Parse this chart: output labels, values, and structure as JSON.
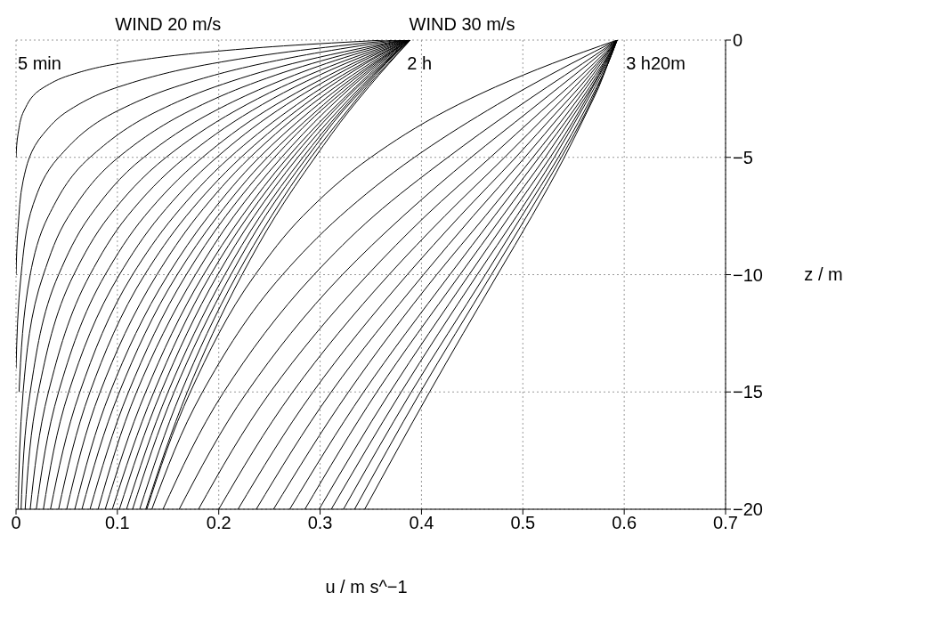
{
  "chart_data": {
    "type": "line",
    "xlabel": "u / m s^−1",
    "ylabel": "z / m",
    "xlim": [
      0,
      0.7
    ],
    "xticks": [
      0,
      0.1,
      0.2,
      0.3,
      0.4,
      0.5,
      0.6,
      0.7
    ],
    "ylim": [
      -20,
      0
    ],
    "yticks": [
      -20,
      -15,
      -10,
      -5,
      0
    ],
    "grid": true,
    "annotations": [
      "WIND 20 m/s",
      "WIND 30 m/s",
      "5 min",
      "2 h",
      "3 h20m"
    ],
    "series": [
      {
        "color": "#000000",
        "x": [
          0.364,
          0.264,
          0.192,
          0.101,
          0.053,
          0.028,
          0.008,
          0.002,
          0
        ],
        "values": [
          0,
          -0.25,
          -0.5,
          -1,
          -1.5,
          -2,
          -3,
          -4,
          -5
        ]
      },
      {
        "color": "#000000",
        "x": [
          0.373,
          0.269,
          0.194,
          0.101,
          0.052,
          0.027,
          0.007,
          0.002,
          0
        ],
        "values": [
          0,
          -0.5,
          -1,
          -2,
          -3,
          -4,
          -6,
          -8,
          -10
        ]
      },
      {
        "color": "#000000",
        "x": [
          0.377,
          0.303,
          0.243,
          0.157,
          0.101,
          0.042,
          0.017,
          0.005,
          0
        ],
        "values": [
          0,
          -0.5,
          -1,
          -2,
          -3,
          -5,
          -7,
          -10,
          -14
        ]
      },
      {
        "color": "#000000",
        "x": [
          0.38,
          0.273,
          0.196,
          0.141,
          0.073,
          0.032,
          0.014,
          0.003
        ],
        "values": [
          0,
          -1,
          -2,
          -3,
          -5,
          -7.5,
          -10,
          -15
        ]
      },
      {
        "color": "#000000",
        "x": [
          0.381,
          0.292,
          0.224,
          0.172,
          0.101,
          0.052,
          0.027,
          0.007,
          0.002
        ],
        "values": [
          0,
          -1,
          -2,
          -3,
          -5,
          -7.5,
          -10,
          -15,
          -20
        ]
      },
      {
        "color": "#000000",
        "x": [
          0.382,
          0.306,
          0.246,
          0.197,
          0.126,
          0.073,
          0.042,
          0.014,
          0.005
        ],
        "values": [
          0,
          -1,
          -2,
          -3,
          -5,
          -7.5,
          -10,
          -15,
          -20
        ]
      },
      {
        "color": "#000000",
        "x": [
          0.383,
          0.317,
          0.262,
          0.217,
          0.148,
          0.092,
          0.057,
          0.022,
          0.009
        ],
        "values": [
          0,
          -1,
          -2,
          -3,
          -5,
          -7.5,
          -10,
          -15,
          -20
        ]
      },
      {
        "color": "#000000",
        "x": [
          0.384,
          0.325,
          0.275,
          0.233,
          0.167,
          0.11,
          0.073,
          0.032,
          0.014
        ],
        "values": [
          0,
          -1,
          -2,
          -3,
          -5,
          -7.5,
          -10,
          -15,
          -20
        ]
      },
      {
        "color": "#000000",
        "x": [
          0.385,
          0.332,
          0.287,
          0.247,
          0.184,
          0.127,
          0.088,
          0.042,
          0.02
        ],
        "values": [
          0,
          -1,
          -2,
          -3,
          -5,
          -7.5,
          -10,
          -15,
          -20
        ]
      },
      {
        "color": "#000000",
        "x": [
          0.385,
          0.337,
          0.295,
          0.258,
          0.198,
          0.142,
          0.102,
          0.052,
          0.027
        ],
        "values": [
          0,
          -1,
          -2,
          -3,
          -5,
          -7.5,
          -10,
          -15,
          -20
        ]
      },
      {
        "color": "#000000",
        "x": [
          0.386,
          0.342,
          0.303,
          0.269,
          0.211,
          0.156,
          0.115,
          0.063,
          0.034
        ],
        "values": [
          0,
          -1,
          -2,
          -3,
          -5,
          -7.5,
          -10,
          -15,
          -20
        ]
      },
      {
        "color": "#000000",
        "x": [
          0.386,
          0.345,
          0.309,
          0.277,
          0.222,
          0.168,
          0.127,
          0.073,
          0.042
        ],
        "values": [
          0,
          -1,
          -2,
          -3,
          -5,
          -7.5,
          -10,
          -15,
          -20
        ]
      },
      {
        "color": "#000000",
        "x": [
          0.386,
          0.349,
          0.315,
          0.284,
          0.231,
          0.179,
          0.139,
          0.083,
          0.05
        ],
        "values": [
          0,
          -1,
          -2,
          -3,
          -5,
          -7.5,
          -10,
          -15,
          -20
        ]
      },
      {
        "color": "#000000",
        "x": [
          0.387,
          0.352,
          0.32,
          0.291,
          0.24,
          0.19,
          0.15,
          0.093,
          0.058
        ],
        "values": [
          0,
          -1,
          -2,
          -3,
          -5,
          -7.5,
          -10,
          -15,
          -20
        ]
      },
      {
        "color": "#000000",
        "x": [
          0.387,
          0.354,
          0.324,
          0.297,
          0.248,
          0.199,
          0.159,
          0.102,
          0.065
        ],
        "values": [
          0,
          -1,
          -2,
          -3,
          -5,
          -7.5,
          -10,
          -15,
          -20
        ]
      },
      {
        "color": "#000000",
        "x": [
          0.387,
          0.356,
          0.328,
          0.301,
          0.255,
          0.207,
          0.168,
          0.111,
          0.073
        ],
        "values": [
          0,
          -1,
          -2,
          -3,
          -5,
          -7.5,
          -10,
          -15,
          -20
        ]
      },
      {
        "color": "#000000",
        "x": [
          0.387,
          0.358,
          0.331,
          0.306,
          0.262,
          0.215,
          0.177,
          0.119,
          0.081
        ],
        "values": [
          0,
          -1,
          -2,
          -3,
          -5,
          -7.5,
          -10,
          -15,
          -20
        ]
      },
      {
        "color": "#000000",
        "x": [
          0.388,
          0.36,
          0.335,
          0.311,
          0.268,
          0.223,
          0.185,
          0.128,
          0.088
        ],
        "values": [
          0,
          -1,
          -2,
          -3,
          -5,
          -7.5,
          -10,
          -15,
          -20
        ]
      },
      {
        "color": "#000000",
        "x": [
          0.388,
          0.362,
          0.337,
          0.314,
          0.273,
          0.229,
          0.192,
          0.136,
          0.095
        ],
        "values": [
          0,
          -1,
          -2,
          -3,
          -5,
          -7.5,
          -10,
          -15,
          -20
        ]
      },
      {
        "color": "#000000",
        "x": [
          0.388,
          0.363,
          0.34,
          0.318,
          0.278,
          0.235,
          0.199,
          0.143,
          0.102
        ],
        "values": [
          0,
          -1,
          -2,
          -3,
          -5,
          -7.5,
          -10,
          -15,
          -20
        ]
      },
      {
        "color": "#000000",
        "x": [
          0.388,
          0.364,
          0.342,
          0.321,
          0.283,
          0.241,
          0.206,
          0.15,
          0.109
        ],
        "values": [
          0,
          -1,
          -2,
          -3,
          -5,
          -7.5,
          -10,
          -15,
          -20
        ]
      },
      {
        "color": "#000000",
        "x": [
          0.388,
          0.365,
          0.344,
          0.323,
          0.287,
          0.246,
          0.212,
          0.156,
          0.115
        ],
        "values": [
          0,
          -1,
          -2,
          -3,
          -5,
          -7.5,
          -10,
          -15,
          -20
        ]
      },
      {
        "color": "#000000",
        "x": [
          0.389,
          0.367,
          0.346,
          0.327,
          0.291,
          0.252,
          0.218,
          0.163,
          0.122
        ],
        "values": [
          0,
          -1,
          -2,
          -3,
          -5,
          -7.5,
          -10,
          -15,
          -20
        ]
      },
      {
        "color": "#000000",
        "x": [
          0.389,
          0.368,
          0.348,
          0.329,
          0.295,
          0.256,
          0.223,
          0.169,
          0.128
        ],
        "values": [
          0,
          -1,
          -2,
          -3,
          -5,
          -7.5,
          -10,
          -15,
          -20
        ]
      },
      {
        "color": "#000000",
        "x": [
          0.593,
          0.529,
          0.473,
          0.425,
          0.35,
          0.283,
          0.236,
          0.172,
          0.129
        ],
        "values": [
          0,
          -1,
          -2,
          -3,
          -5,
          -7.5,
          -10,
          -15,
          -20
        ]
      },
      {
        "color": "#000000",
        "x": [
          0.593,
          0.548,
          0.505,
          0.465,
          0.393,
          0.32,
          0.263,
          0.184,
          0.134
        ],
        "values": [
          0,
          -1,
          -2,
          -3,
          -5,
          -7.5,
          -10,
          -15,
          -20
        ]
      },
      {
        "color": "#000000",
        "x": [
          0.593,
          0.559,
          0.524,
          0.49,
          0.426,
          0.353,
          0.294,
          0.205,
          0.145
        ],
        "values": [
          0,
          -1,
          -2,
          -3,
          -5,
          -7.5,
          -10,
          -15,
          -20
        ]
      },
      {
        "color": "#000000",
        "x": [
          0.593,
          0.565,
          0.536,
          0.507,
          0.449,
          0.382,
          0.322,
          0.228,
          0.161
        ],
        "values": [
          0,
          -1,
          -2,
          -3,
          -5,
          -7.5,
          -10,
          -15,
          -20
        ]
      },
      {
        "color": "#000000",
        "x": [
          0.593,
          0.57,
          0.545,
          0.519,
          0.468,
          0.404,
          0.347,
          0.251,
          0.18
        ],
        "values": [
          0,
          -1,
          -2,
          -3,
          -5,
          -7.5,
          -10,
          -15,
          -20
        ]
      },
      {
        "color": "#000000",
        "x": [
          0.593,
          0.573,
          0.551,
          0.528,
          0.482,
          0.423,
          0.368,
          0.273,
          0.2
        ],
        "values": [
          0,
          -1,
          -2,
          -3,
          -5,
          -7.5,
          -10,
          -15,
          -20
        ]
      },
      {
        "color": "#000000",
        "x": [
          0.593,
          0.575,
          0.556,
          0.535,
          0.493,
          0.438,
          0.386,
          0.293,
          0.219
        ],
        "values": [
          0,
          -1,
          -2,
          -3,
          -5,
          -7.5,
          -10,
          -15,
          -20
        ]
      },
      {
        "color": "#000000",
        "x": [
          0.593,
          0.577,
          0.56,
          0.541,
          0.502,
          0.451,
          0.402,
          0.311,
          0.237
        ],
        "values": [
          0,
          -1,
          -2,
          -3,
          -5,
          -7.5,
          -10,
          -15,
          -20
        ]
      },
      {
        "color": "#000000",
        "x": [
          0.593,
          0.579,
          0.563,
          0.546,
          0.51,
          0.463,
          0.415,
          0.328,
          0.254
        ],
        "values": [
          0,
          -1,
          -2,
          -3,
          -5,
          -7.5,
          -10,
          -15,
          -20
        ]
      },
      {
        "color": "#000000",
        "x": [
          0.593,
          0.58,
          0.566,
          0.55,
          0.516,
          0.472,
          0.428,
          0.343,
          0.27
        ],
        "values": [
          0,
          -1,
          -2,
          -3,
          -5,
          -7.5,
          -10,
          -15,
          -20
        ]
      },
      {
        "color": "#000000",
        "x": [
          0.593,
          0.581,
          0.568,
          0.553,
          0.522,
          0.48,
          0.438,
          0.356,
          0.285
        ],
        "values": [
          0,
          -1,
          -2,
          -3,
          -5,
          -7.5,
          -10,
          -15,
          -20
        ]
      },
      {
        "color": "#000000",
        "x": [
          0.593,
          0.582,
          0.569,
          0.556,
          0.527,
          0.487,
          0.447,
          0.369,
          0.299
        ],
        "values": [
          0,
          -1,
          -2,
          -3,
          -5,
          -7.5,
          -10,
          -15,
          -20
        ]
      },
      {
        "color": "#000000",
        "x": [
          0.593,
          0.583,
          0.571,
          0.558,
          0.531,
          0.494,
          0.455,
          0.38,
          0.311
        ],
        "values": [
          0,
          -1,
          -2,
          -3,
          -5,
          -7.5,
          -10,
          -15,
          -20
        ]
      },
      {
        "color": "#000000",
        "x": [
          0.593,
          0.584,
          0.573,
          0.561,
          0.535,
          0.499,
          0.463,
          0.39,
          0.323
        ],
        "values": [
          0,
          -1,
          -2,
          -3,
          -5,
          -7.5,
          -10,
          -15,
          -20
        ]
      },
      {
        "color": "#000000",
        "x": [
          0.593,
          0.584,
          0.574,
          0.563,
          0.538,
          0.504,
          0.469,
          0.399,
          0.334
        ],
        "values": [
          0,
          -1,
          -2,
          -3,
          -5,
          -7.5,
          -10,
          -15,
          -20
        ]
      },
      {
        "color": "#000000",
        "x": [
          0.593,
          0.584,
          0.575,
          0.564,
          0.541,
          0.509,
          0.475,
          0.408,
          0.344
        ],
        "values": [
          0,
          -1,
          -2,
          -3,
          -5,
          -7.5,
          -10,
          -15,
          -20
        ]
      }
    ]
  }
}
